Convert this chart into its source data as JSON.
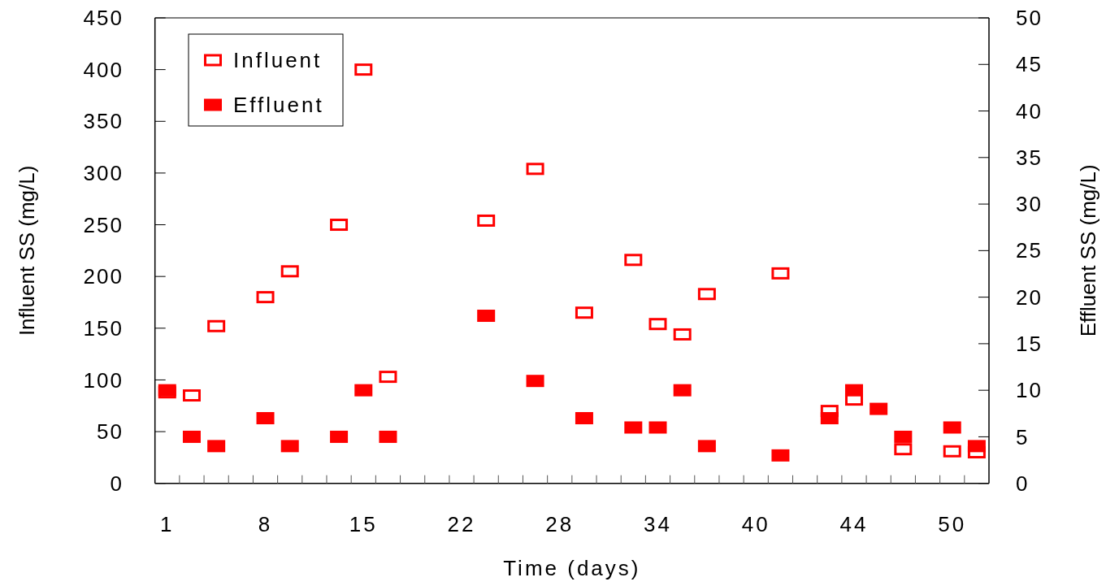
{
  "chart_data": {
    "type": "scatter",
    "xlabel": "Time (days)",
    "ylabel": "Influent SS (mg/L)",
    "y2label": "Effluent SS (mg/L)",
    "categories": [
      "1",
      null,
      null,
      null,
      "8",
      null,
      null,
      null,
      "15",
      null,
      null,
      null,
      "22",
      null,
      null,
      null,
      "28",
      null,
      null,
      null,
      "34",
      null,
      null,
      null,
      "40",
      null,
      null,
      null,
      "44",
      null,
      null,
      null,
      "50",
      null
    ],
    "series": [
      {
        "name": "Influent",
        "color": "#ff0000",
        "values": [
          88,
          85,
          152,
          null,
          180,
          205,
          null,
          250,
          400,
          103,
          null,
          null,
          null,
          254,
          null,
          304,
          null,
          165,
          null,
          216,
          154,
          144,
          183,
          null,
          null,
          203,
          null,
          70,
          81,
          null,
          33,
          null,
          31,
          30
        ]
      },
      {
        "name": "Effluent",
        "color": "#ff0000",
        "axis": "y2",
        "values": [
          10,
          5,
          4,
          null,
          7,
          4,
          null,
          5,
          10,
          5,
          null,
          null,
          null,
          18,
          null,
          11,
          null,
          7,
          null,
          6,
          6,
          10,
          4,
          null,
          null,
          3,
          null,
          7,
          10,
          8,
          5,
          null,
          6,
          4
        ]
      }
    ],
    "ylim": [
      0,
      450
    ],
    "yticks": [
      0,
      50,
      100,
      150,
      200,
      250,
      300,
      350,
      400,
      450
    ],
    "y2lim": [
      0,
      50
    ],
    "y2ticks": [
      0,
      5,
      10,
      15,
      20,
      25,
      30,
      35,
      40,
      45,
      50
    ],
    "marker": "square",
    "legend": "top left",
    "grid": false
  }
}
